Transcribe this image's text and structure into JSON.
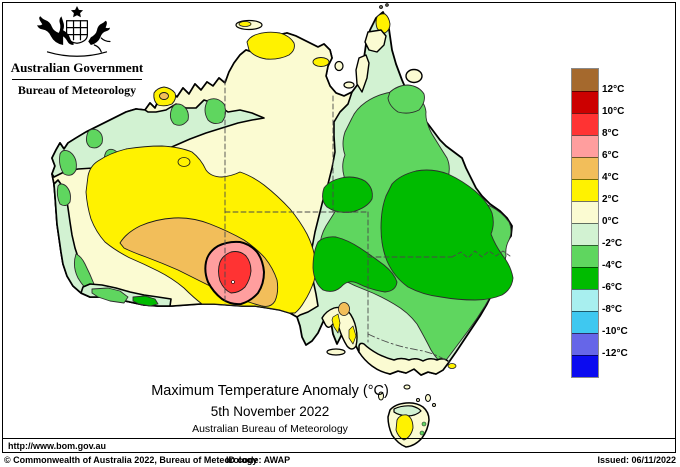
{
  "header": {
    "org": "Australian Government",
    "dept": "Bureau of Meteorology"
  },
  "titles": {
    "main": "Maximum Temperature Anomaly (°C)",
    "date": "5th November 2022",
    "sub": "Australian Bureau of Meteorology"
  },
  "legend": {
    "unit": "°C",
    "labels": [
      "12°C",
      "10°C",
      "8°C",
      "6°C",
      "4°C",
      "2°C",
      "0°C",
      "-2°C",
      "-4°C",
      "-6°C",
      "-8°C",
      "-10°C",
      "-12°C"
    ],
    "thresholds": [
      12,
      10,
      8,
      6,
      4,
      2,
      0,
      -2,
      -4,
      -6,
      -8,
      -10,
      -12
    ],
    "colors": [
      "#A5692D",
      "#CC0000",
      "#FF3333",
      "#FF9E9E",
      "#F2BE5A",
      "#FFF200",
      "#FBFBD2",
      "#D2F2D2",
      "#5FD65F",
      "#00BB00",
      "#A8EFEF",
      "#3FC8F0",
      "#6666E8",
      "#0B0BF0"
    ]
  },
  "map": {
    "palette": {
      "ocean": "#FFFFFF",
      "cream_0_2": "#FBFBD2",
      "pale_green_n2_0": "#D2F2D2",
      "medium_green_n4_n2": "#5FD65F",
      "dark_green_n6_n4": "#00BB00",
      "yellow_2_4": "#FFF200",
      "orange_4_6": "#F2BE5A",
      "pink_6_8": "#FF9E9E",
      "red_8_10": "#FF3333"
    }
  },
  "footer": {
    "url": "http://www.bom.gov.au",
    "copyright": "© Commonwealth of Australia 2022, Bureau of Meteorology",
    "id_code": "ID code: AWAP",
    "issued": "Issued: 06/11/2022"
  }
}
